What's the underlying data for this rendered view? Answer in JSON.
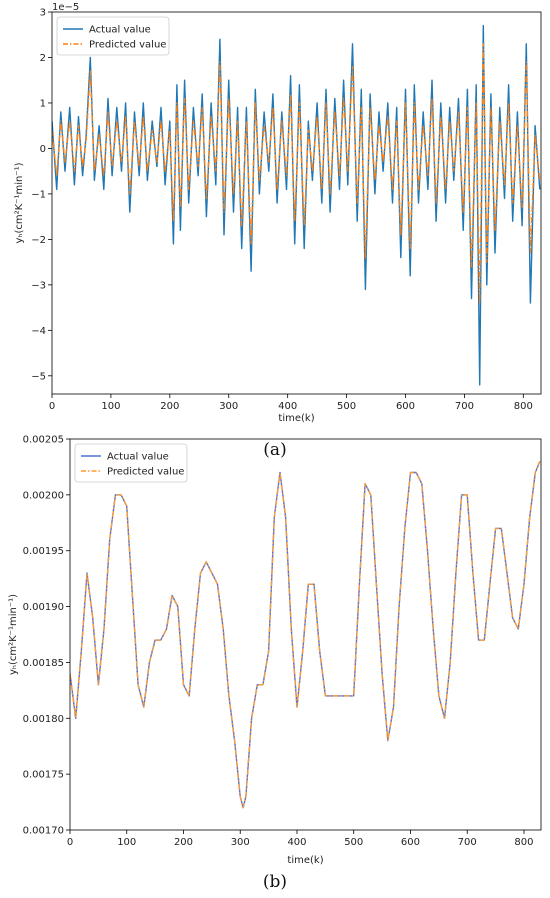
{
  "chart_data": [
    {
      "type": "line",
      "caption": "(a)",
      "xlabel": "time(k)",
      "ylabel": "yₕ(cm²K⁻¹min⁻¹)",
      "offset_label": "1e−5",
      "xlim": [
        0,
        830
      ],
      "ylim": [
        -5.4,
        3.0
      ],
      "xticks": [
        0,
        100,
        200,
        300,
        400,
        500,
        600,
        700,
        800
      ],
      "yticks": [
        -5,
        -4,
        -3,
        -2,
        -1,
        0,
        1,
        2,
        3
      ],
      "ytick_labels": [
        "−5",
        "−4",
        "−3",
        "−2",
        "−1",
        "0",
        "1",
        "2",
        "3"
      ],
      "legend_position": "top-left",
      "series": [
        {
          "name": "Actual value",
          "color": "#1f77b4",
          "style": "solid",
          "x": [
            0,
            8,
            15,
            22,
            30,
            38,
            45,
            52,
            58,
            65,
            72,
            80,
            88,
            95,
            102,
            110,
            118,
            125,
            132,
            140,
            148,
            155,
            162,
            170,
            178,
            185,
            192,
            200,
            206,
            212,
            218,
            225,
            232,
            240,
            248,
            255,
            262,
            270,
            278,
            285,
            292,
            300,
            308,
            315,
            322,
            330,
            338,
            345,
            352,
            360,
            368,
            375,
            382,
            390,
            398,
            405,
            412,
            420,
            428,
            435,
            442,
            450,
            458,
            465,
            472,
            480,
            488,
            495,
            502,
            510,
            518,
            525,
            532,
            540,
            548,
            555,
            562,
            570,
            578,
            585,
            592,
            600,
            608,
            615,
            622,
            630,
            638,
            645,
            652,
            660,
            668,
            675,
            682,
            690,
            698,
            705,
            712,
            720,
            726,
            732,
            738,
            745,
            752,
            760,
            768,
            775,
            782,
            790,
            798,
            805,
            812,
            820,
            828
          ],
          "y": [
            0.6,
            -0.9,
            0.8,
            -0.5,
            0.9,
            -0.8,
            0.7,
            -0.6,
            0.3,
            2.0,
            -0.7,
            0.5,
            -0.9,
            1.1,
            -0.6,
            0.9,
            -0.5,
            1.0,
            -1.4,
            0.8,
            -0.6,
            1.0,
            -0.7,
            0.6,
            -0.4,
            0.9,
            -0.8,
            0.6,
            -2.1,
            1.4,
            -1.8,
            1.5,
            -1.2,
            0.9,
            -0.6,
            1.2,
            -1.5,
            1.0,
            -0.8,
            2.4,
            -1.9,
            1.5,
            -1.4,
            0.9,
            -2.2,
            0.9,
            -2.7,
            1.3,
            -1.0,
            0.8,
            -0.5,
            1.2,
            -1.2,
            0.8,
            -0.9,
            1.6,
            -2.1,
            1.4,
            -2.2,
            0.6,
            -0.7,
            1.0,
            -1.2,
            1.3,
            -1.4,
            1.1,
            -0.9,
            1.5,
            -0.8,
            2.3,
            -1.6,
            1.3,
            -3.1,
            1.2,
            -1.0,
            0.8,
            -0.5,
            1.0,
            -1.2,
            0.9,
            -2.4,
            1.3,
            -2.8,
            1.4,
            -1.2,
            0.8,
            -0.9,
            1.5,
            -1.6,
            1.0,
            -1.2,
            0.9,
            -0.7,
            1.1,
            -1.8,
            1.3,
            -3.3,
            1.4,
            -5.2,
            2.7,
            -3.0,
            1.2,
            -2.3,
            0.9,
            -1.1,
            1.4,
            -1.6,
            0.8,
            -1.7,
            2.3,
            -3.4,
            0.5,
            -0.9
          ]
        },
        {
          "name": "Predicted value",
          "color": "#ff7f0e",
          "style": "dashdot",
          "x": [
            0,
            8,
            15,
            22,
            30,
            38,
            45,
            52,
            58,
            65,
            72,
            80,
            88,
            95,
            102,
            110,
            118,
            125,
            132,
            140,
            148,
            155,
            162,
            170,
            178,
            185,
            192,
            200,
            206,
            212,
            218,
            225,
            232,
            240,
            248,
            255,
            262,
            270,
            278,
            285,
            292,
            300,
            308,
            315,
            322,
            330,
            338,
            345,
            352,
            360,
            368,
            375,
            382,
            390,
            398,
            405,
            412,
            420,
            428,
            435,
            442,
            450,
            458,
            465,
            472,
            480,
            488,
            495,
            502,
            510,
            518,
            525,
            532,
            540,
            548,
            555,
            562,
            570,
            578,
            585,
            592,
            600,
            608,
            615,
            622,
            630,
            638,
            645,
            652,
            660,
            668,
            675,
            682,
            690,
            698,
            705,
            712,
            720,
            726,
            732,
            738,
            745,
            752,
            760,
            768,
            775,
            782,
            790,
            798,
            805,
            812,
            820,
            828
          ],
          "y": [
            0.4,
            -0.6,
            0.6,
            -0.3,
            0.6,
            -0.5,
            0.5,
            -0.4,
            0.2,
            1.7,
            -0.5,
            0.3,
            -0.6,
            0.8,
            -0.4,
            0.6,
            -0.3,
            0.7,
            -1.0,
            0.6,
            -0.4,
            0.7,
            -0.5,
            0.4,
            -0.3,
            0.6,
            -0.5,
            0.4,
            -1.6,
            1.0,
            -1.3,
            1.1,
            -0.9,
            0.6,
            -0.4,
            0.9,
            -1.1,
            0.7,
            -0.5,
            1.9,
            -1.4,
            1.1,
            -1.0,
            0.6,
            -1.7,
            0.6,
            -2.1,
            1.0,
            -0.7,
            0.5,
            -0.3,
            0.9,
            -0.9,
            0.6,
            -0.6,
            1.2,
            -1.6,
            1.0,
            -1.7,
            0.4,
            -0.5,
            0.7,
            -0.9,
            1.0,
            -1.0,
            0.8,
            -0.6,
            1.1,
            -0.5,
            1.8,
            -1.2,
            0.9,
            -2.4,
            0.9,
            -0.7,
            0.5,
            -0.3,
            0.7,
            -0.9,
            0.6,
            -1.9,
            1.0,
            -2.2,
            1.0,
            -0.9,
            0.5,
            -0.6,
            1.1,
            -1.2,
            0.7,
            -0.9,
            0.6,
            -0.5,
            0.8,
            -1.4,
            0.9,
            -2.6,
            1.0,
            -3.4,
            2.3,
            -2.5,
            0.9,
            -1.8,
            0.6,
            -0.8,
            1.0,
            -1.2,
            0.5,
            -1.3,
            1.9,
            -2.3,
            0.3,
            -0.7
          ]
        }
      ]
    },
    {
      "type": "line",
      "caption": "(b)",
      "xlabel": "time(k)",
      "ylabel": "yₕ(cm²K⁻¹min⁻¹)",
      "xlim": [
        0,
        830
      ],
      "ylim": [
        0.0017,
        0.00205
      ],
      "xticks": [
        0,
        100,
        200,
        300,
        400,
        500,
        600,
        700,
        800
      ],
      "yticks": [
        0.0017,
        0.00175,
        0.0018,
        0.00185,
        0.0019,
        0.00195,
        0.002,
        0.00205
      ],
      "ytick_labels": [
        "0.00170",
        "0.00175",
        "0.00180",
        "0.00185",
        "0.00190",
        "0.00195",
        "0.00200",
        "0.00205"
      ],
      "legend_position": "top-left",
      "series": [
        {
          "name": "Actual value",
          "color": "#4e6fd6",
          "style": "solid",
          "x": [
            0,
            10,
            20,
            30,
            40,
            50,
            60,
            70,
            80,
            90,
            100,
            110,
            120,
            130,
            140,
            150,
            160,
            170,
            180,
            190,
            200,
            210,
            220,
            230,
            240,
            250,
            260,
            270,
            280,
            290,
            300,
            305,
            310,
            320,
            330,
            340,
            350,
            360,
            370,
            380,
            390,
            400,
            410,
            420,
            430,
            440,
            450,
            460,
            470,
            480,
            490,
            500,
            510,
            520,
            530,
            540,
            550,
            560,
            570,
            580,
            590,
            600,
            610,
            620,
            630,
            640,
            650,
            660,
            670,
            680,
            690,
            700,
            710,
            720,
            730,
            740,
            750,
            760,
            770,
            780,
            790,
            800,
            810,
            820,
            828
          ],
          "y": [
            0.00184,
            0.0018,
            0.00186,
            0.00193,
            0.00189,
            0.00183,
            0.00188,
            0.00196,
            0.002,
            0.002,
            0.00199,
            0.00191,
            0.00183,
            0.00181,
            0.00185,
            0.00187,
            0.00187,
            0.00188,
            0.00191,
            0.0019,
            0.00183,
            0.00182,
            0.00188,
            0.00193,
            0.00194,
            0.00193,
            0.00192,
            0.00188,
            0.00182,
            0.00178,
            0.00173,
            0.00172,
            0.00173,
            0.0018,
            0.00183,
            0.00183,
            0.00186,
            0.00198,
            0.00202,
            0.00198,
            0.00188,
            0.00181,
            0.00186,
            0.00192,
            0.00192,
            0.00186,
            0.00182,
            0.00182,
            0.00182,
            0.00182,
            0.00182,
            0.00182,
            0.00192,
            0.00201,
            0.002,
            0.00192,
            0.00184,
            0.00178,
            0.00181,
            0.0019,
            0.00197,
            0.00202,
            0.00202,
            0.00201,
            0.00195,
            0.00188,
            0.00182,
            0.0018,
            0.00185,
            0.00193,
            0.002,
            0.002,
            0.00193,
            0.00187,
            0.00187,
            0.00192,
            0.00197,
            0.00197,
            0.00193,
            0.00189,
            0.00188,
            0.00192,
            0.00198,
            0.00202,
            0.00203
          ],
          "note": ""
        },
        {
          "name": "Predicted value",
          "color": "#ff9a2e",
          "style": "dashdot",
          "x": [
            0,
            10,
            20,
            30,
            40,
            50,
            60,
            70,
            80,
            90,
            100,
            110,
            120,
            130,
            140,
            150,
            160,
            170,
            180,
            190,
            200,
            210,
            220,
            230,
            240,
            250,
            260,
            270,
            280,
            290,
            300,
            305,
            310,
            320,
            330,
            340,
            350,
            360,
            370,
            380,
            390,
            400,
            410,
            420,
            430,
            440,
            450,
            460,
            470,
            480,
            490,
            500,
            510,
            520,
            530,
            540,
            550,
            560,
            570,
            580,
            590,
            600,
            610,
            620,
            630,
            640,
            650,
            660,
            670,
            680,
            690,
            700,
            710,
            720,
            730,
            740,
            750,
            760,
            770,
            780,
            790,
            800,
            810,
            820,
            828
          ],
          "y": [
            0.00184,
            0.0018,
            0.00186,
            0.00193,
            0.00189,
            0.00183,
            0.00188,
            0.00196,
            0.002,
            0.002,
            0.00199,
            0.00191,
            0.00183,
            0.00181,
            0.00185,
            0.00187,
            0.00187,
            0.00188,
            0.00191,
            0.0019,
            0.00183,
            0.00182,
            0.00188,
            0.00193,
            0.00194,
            0.00193,
            0.00192,
            0.00188,
            0.00182,
            0.00178,
            0.00173,
            0.00172,
            0.00173,
            0.0018,
            0.00183,
            0.00183,
            0.00186,
            0.00198,
            0.00202,
            0.00198,
            0.00188,
            0.00181,
            0.00186,
            0.00192,
            0.00192,
            0.00186,
            0.00182,
            0.00182,
            0.00182,
            0.00182,
            0.00182,
            0.00182,
            0.00192,
            0.00201,
            0.002,
            0.00192,
            0.00184,
            0.00178,
            0.00181,
            0.0019,
            0.00197,
            0.00202,
            0.00202,
            0.00201,
            0.00195,
            0.00188,
            0.00182,
            0.0018,
            0.00185,
            0.00193,
            0.002,
            0.002,
            0.00193,
            0.00187,
            0.00187,
            0.00192,
            0.00197,
            0.00197,
            0.00193,
            0.00189,
            0.00188,
            0.00192,
            0.00198,
            0.00202,
            0.00203
          ]
        }
      ]
    }
  ]
}
